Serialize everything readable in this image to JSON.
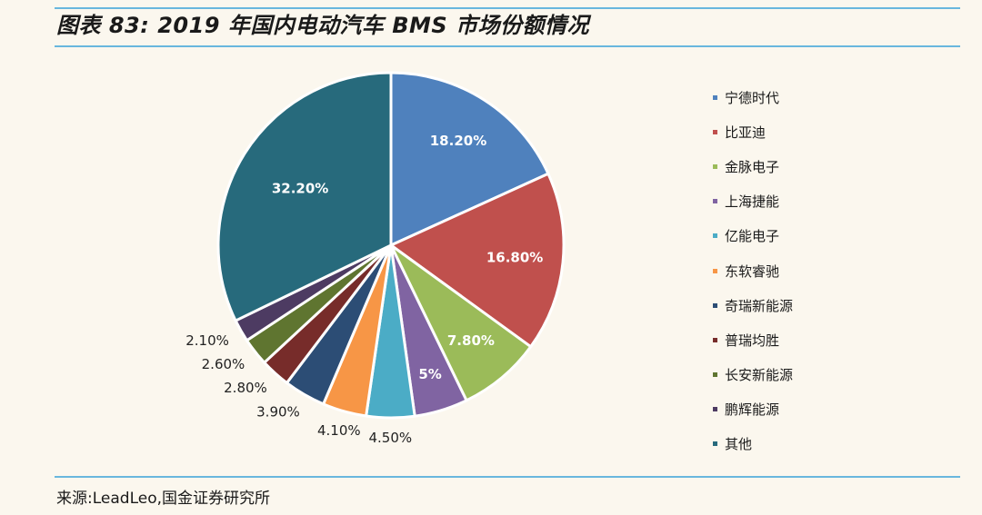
{
  "header": {
    "title": "图表 83:  2019 年国内电动汽车 BMS 市场份额情况"
  },
  "footer": {
    "source": "来源:LeadLeo,国金证券研究所"
  },
  "chart_data": {
    "type": "pie",
    "title": "图表 83:  2019 年国内电动汽车 BMS 市场份额情况",
    "start_angle_deg": 0,
    "direction": "clockwise",
    "legend_position": "right",
    "slices": [
      {
        "name": "宁德时代",
        "value": 18.2,
        "label": "18.20%",
        "color": "#4f81bd",
        "label_inside": true
      },
      {
        "name": "比亚迪",
        "value": 16.8,
        "label": "16.80%",
        "color": "#c0504d",
        "label_inside": true
      },
      {
        "name": "金脉电子",
        "value": 7.8,
        "label": "7.80%",
        "color": "#9bbb59",
        "label_inside": true
      },
      {
        "name": "上海捷能",
        "value": 5.0,
        "label": "5%",
        "color": "#8064a2",
        "label_inside": true
      },
      {
        "name": "亿能电子",
        "value": 4.5,
        "label": "4.50%",
        "color": "#4bacc6",
        "label_inside": false
      },
      {
        "name": "东软睿驰",
        "value": 4.1,
        "label": "4.10%",
        "color": "#f79646",
        "label_inside": false
      },
      {
        "name": "奇瑞新能源",
        "value": 3.9,
        "label": "3.90%",
        "color": "#2c4d75",
        "label_inside": false
      },
      {
        "name": "普瑞均胜",
        "value": 2.8,
        "label": "2.80%",
        "color": "#772c2a",
        "label_inside": false
      },
      {
        "name": "长安新能源",
        "value": 2.6,
        "label": "2.60%",
        "color": "#5f7530",
        "label_inside": false
      },
      {
        "name": "鹏辉能源",
        "value": 2.1,
        "label": "2.10%",
        "color": "#4d3b62",
        "label_inside": false
      },
      {
        "name": "其他",
        "value": 32.2,
        "label": "32.20%",
        "color": "#276a7c",
        "label_inside": true
      }
    ]
  }
}
